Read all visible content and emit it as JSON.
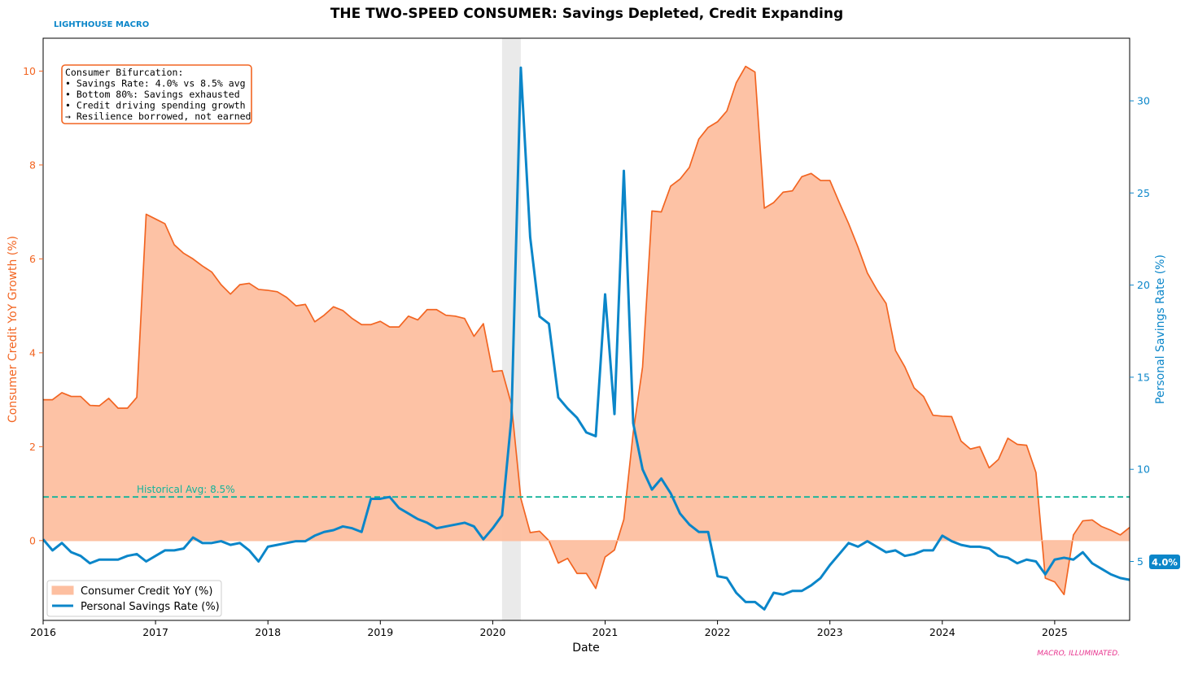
{
  "brand": {
    "label": "LIGHTHOUSE MACRO",
    "color": "#0b86c9"
  },
  "footer": {
    "label": "MACRO, ILLUMINATED.",
    "color": "#e8338e"
  },
  "colors": {
    "credit_line": "#f26522",
    "credit_fill": "#fdbfa0",
    "savings_line": "#0b86c9",
    "avg_line": "#13b39a",
    "recession_band": "#e6e6e6",
    "annotation_border": "#f26522",
    "end_badge_bg": "#0b86c9"
  },
  "annotation": {
    "lines": [
      "Consumer Bifurcation:",
      "• Savings Rate: 4.0% vs 8.5% avg",
      "• Bottom 80%: Savings exhausted",
      "• Credit driving spending growth",
      "→ Resilience borrowed, not earned"
    ]
  },
  "legend": {
    "credit_label": "Consumer Credit YoY (%)",
    "savings_label": "Personal Savings Rate (%)"
  },
  "end_badge": "4.0%",
  "chart_data": {
    "type": "line",
    "title": "THE TWO-SPEED CONSUMER: Savings Depleted, Credit Expanding",
    "xlabel": "Date",
    "ylabel_left": "Consumer Credit YoY Growth (%)",
    "ylabel_right": "Personal Savings Rate (%)",
    "x_range": [
      2016.0,
      2025.667
    ],
    "ylim_left": [
      -1.7,
      10.7
    ],
    "ylim_right": [
      1.8,
      33.4
    ],
    "x_ticks": [
      "2016",
      "2017",
      "2018",
      "2019",
      "2020",
      "2021",
      "2022",
      "2023",
      "2024",
      "2025"
    ],
    "y_ticks_left": [
      "0",
      "2",
      "4",
      "6",
      "8",
      "10"
    ],
    "y_ticks_right": [
      "5",
      "10",
      "15",
      "20",
      "25",
      "30"
    ],
    "grid": false,
    "legend_position": "lower-left",
    "recession_shading": {
      "start": 2020.083,
      "end": 2020.25
    },
    "reference_line": {
      "value": 8.5,
      "axis": "right",
      "label": "Historical Avg: 8.5%"
    },
    "series": [
      {
        "name": "Consumer Credit YoY (%)",
        "axis": "left",
        "style": "filled-area",
        "start": 2016.0,
        "step_months": 1,
        "values": [
          3.0,
          3.0,
          3.15,
          3.07,
          3.07,
          2.88,
          2.87,
          3.03,
          2.82,
          2.82,
          3.05,
          6.95,
          6.85,
          6.75,
          6.3,
          6.12,
          6.0,
          5.85,
          5.72,
          5.45,
          5.25,
          5.45,
          5.48,
          5.35,
          5.33,
          5.3,
          5.18,
          5.0,
          5.03,
          4.66,
          4.8,
          4.98,
          4.9,
          4.73,
          4.6,
          4.6,
          4.67,
          4.55,
          4.55,
          4.78,
          4.7,
          4.92,
          4.92,
          4.8,
          4.78,
          4.73,
          4.35,
          4.62,
          3.6,
          3.62,
          2.9,
          0.9,
          0.17,
          0.2,
          0.0,
          -0.48,
          -0.38,
          -0.7,
          -0.7,
          -1.02,
          -0.35,
          -0.2,
          0.45,
          2.3,
          3.7,
          7.02,
          7.0,
          7.55,
          7.7,
          7.95,
          8.55,
          8.8,
          8.92,
          9.15,
          9.75,
          10.1,
          9.98,
          7.08,
          7.2,
          7.42,
          7.45,
          7.75,
          7.82,
          7.67,
          7.67,
          7.2,
          6.75,
          6.25,
          5.7,
          5.35,
          5.05,
          4.05,
          3.7,
          3.25,
          3.07,
          2.67,
          2.65,
          2.64,
          2.12,
          1.95,
          2.0,
          1.55,
          1.73,
          2.18,
          2.05,
          2.03,
          1.45,
          -0.8,
          -0.88,
          -1.15,
          0.12,
          0.42,
          0.44,
          0.3,
          0.22,
          0.12,
          0.28
        ]
      },
      {
        "name": "Personal Savings Rate (%)",
        "axis": "right",
        "style": "line",
        "start": 2016.0,
        "step_months": 1,
        "values": [
          6.2,
          5.6,
          6.0,
          5.5,
          5.3,
          4.9,
          5.1,
          5.1,
          5.1,
          5.3,
          5.4,
          5.0,
          5.3,
          5.6,
          5.6,
          5.7,
          6.3,
          6.0,
          6.0,
          6.1,
          5.9,
          6.0,
          5.6,
          5.0,
          5.8,
          5.9,
          6.0,
          6.1,
          6.1,
          6.4,
          6.6,
          6.7,
          6.9,
          6.8,
          6.6,
          8.4,
          8.4,
          8.5,
          7.9,
          7.6,
          7.3,
          7.1,
          6.8,
          6.9,
          7.0,
          7.1,
          6.9,
          6.2,
          6.8,
          7.5,
          12.8,
          31.8,
          22.6,
          18.3,
          17.9,
          13.9,
          13.3,
          12.8,
          12.0,
          11.8,
          19.5,
          13.0,
          26.2,
          12.5,
          10.0,
          8.9,
          9.5,
          8.7,
          7.6,
          7.0,
          6.6,
          6.6,
          4.2,
          4.1,
          3.3,
          2.8,
          2.8,
          2.4,
          3.3,
          3.2,
          3.4,
          3.4,
          3.7,
          4.1,
          4.8,
          5.4,
          6.0,
          5.8,
          6.1,
          5.8,
          5.5,
          5.6,
          5.3,
          5.4,
          5.6,
          5.6,
          6.4,
          6.1,
          5.9,
          5.8,
          5.8,
          5.7,
          5.3,
          5.2,
          4.9,
          5.1,
          5.0,
          4.3,
          5.1,
          5.2,
          5.1,
          5.5,
          4.9,
          4.6,
          4.3,
          4.1,
          4.0
        ]
      }
    ]
  }
}
